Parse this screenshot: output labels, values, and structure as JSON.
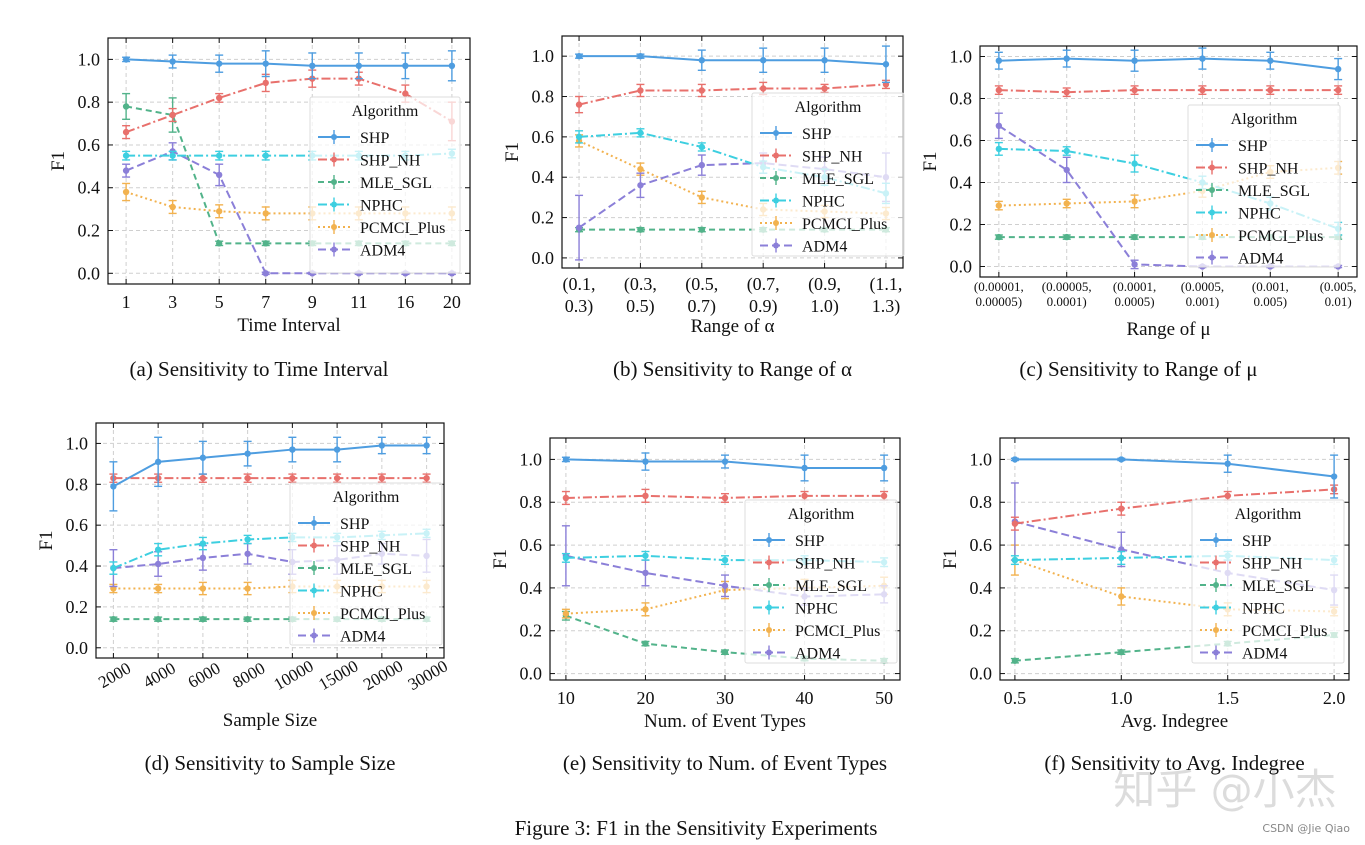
{
  "figure_caption": "Figure 3: F1 in the Sensitivity Experiments",
  "watermarks": {
    "zhihu": "知乎 @小杰",
    "csdn": "CSDN @Jie Qiao"
  },
  "series_styles": [
    {
      "name": "SHP",
      "color": "#4e9de0",
      "dash": ""
    },
    {
      "name": "SHP_NH",
      "color": "#e8706c",
      "dash": "9,3,2,3"
    },
    {
      "name": "MLE_SGL",
      "color": "#52b38a",
      "dash": "6,4"
    },
    {
      "name": "NPHC",
      "color": "#3dcfe0",
      "dash": "9,3,2,3"
    },
    {
      "name": "PCMCI_Plus",
      "color": "#f2b24f",
      "dash": "2,3"
    },
    {
      "name": "ADM4",
      "color": "#8b7fd8",
      "dash": "8,4"
    }
  ],
  "chart_data": [
    {
      "type": "line",
      "caption": "(a) Sensitivity to Time Interval",
      "xlabel": "Time Interval",
      "ylabel": "F1",
      "categories": [
        "1",
        "3",
        "5",
        "7",
        "9",
        "11",
        "16",
        "20"
      ],
      "ylim": [
        -0.05,
        1.1
      ],
      "yticks": [
        0.0,
        0.2,
        0.4,
        0.6,
        0.8,
        1.0
      ],
      "legend_title": "Algorithm",
      "series": [
        {
          "name": "SHP",
          "values": [
            1.0,
            0.99,
            0.98,
            0.98,
            0.97,
            0.97,
            0.97,
            0.97
          ],
          "err": [
            0.01,
            0.03,
            0.04,
            0.06,
            0.06,
            0.06,
            0.06,
            0.07
          ]
        },
        {
          "name": "SHP_NH",
          "values": [
            0.66,
            0.74,
            0.82,
            0.89,
            0.91,
            0.91,
            0.84,
            0.71
          ],
          "err": [
            0.03,
            0.03,
            0.02,
            0.04,
            0.04,
            0.03,
            0.04,
            0.09
          ]
        },
        {
          "name": "MLE_SGL",
          "values": [
            0.78,
            0.74,
            0.14,
            0.14,
            0.14,
            0.14,
            0.14,
            0.14
          ],
          "err": [
            0.06,
            0.08,
            0.01,
            0.01,
            0.01,
            0.01,
            0.01,
            0.01
          ]
        },
        {
          "name": "NPHC",
          "values": [
            0.55,
            0.55,
            0.55,
            0.55,
            0.55,
            0.55,
            0.55,
            0.56
          ],
          "err": [
            0.02,
            0.02,
            0.02,
            0.02,
            0.02,
            0.02,
            0.02,
            0.02
          ]
        },
        {
          "name": "PCMCI_Plus",
          "values": [
            0.38,
            0.31,
            0.29,
            0.28,
            0.28,
            0.28,
            0.28,
            0.28
          ],
          "err": [
            0.04,
            0.03,
            0.03,
            0.03,
            0.03,
            0.03,
            0.03,
            0.03
          ]
        },
        {
          "name": "ADM4",
          "values": [
            0.48,
            0.57,
            0.46,
            0.0,
            0.0,
            0.0,
            0.0,
            0.0
          ],
          "err": [
            0.03,
            0.04,
            0.05,
            0.005,
            0.005,
            0.005,
            0.005,
            0.005
          ]
        }
      ]
    },
    {
      "type": "line",
      "caption": "(b) Sensitivity to Range of α",
      "xlabel": "Range of α",
      "ylabel": "F1",
      "categories": [
        "(0.1,\n0.3)",
        "(0.3,\n0.5)",
        "(0.5,\n0.7)",
        "(0.7,\n0.9)",
        "(0.9,\n1.0)",
        "(1.1,\n1.3)"
      ],
      "ylim": [
        -0.05,
        1.1
      ],
      "yticks": [
        0.0,
        0.2,
        0.4,
        0.6,
        0.8,
        1.0
      ],
      "legend_title": "Algorithm",
      "series": [
        {
          "name": "SHP",
          "values": [
            1.0,
            1.0,
            0.98,
            0.98,
            0.98,
            0.96
          ],
          "err": [
            0.01,
            0.01,
            0.05,
            0.06,
            0.06,
            0.09
          ]
        },
        {
          "name": "SHP_NH",
          "values": [
            0.76,
            0.83,
            0.83,
            0.84,
            0.84,
            0.86
          ],
          "err": [
            0.04,
            0.03,
            0.03,
            0.03,
            0.02,
            0.02
          ]
        },
        {
          "name": "MLE_SGL",
          "values": [
            0.14,
            0.14,
            0.14,
            0.14,
            0.14,
            0.14
          ],
          "err": [
            0.01,
            0.01,
            0.01,
            0.01,
            0.01,
            0.01
          ]
        },
        {
          "name": "NPHC",
          "values": [
            0.6,
            0.62,
            0.55,
            0.45,
            0.4,
            0.32
          ],
          "err": [
            0.03,
            0.02,
            0.02,
            0.03,
            0.04,
            0.05
          ]
        },
        {
          "name": "PCMCI_Plus",
          "values": [
            0.58,
            0.44,
            0.3,
            0.24,
            0.23,
            0.22
          ],
          "err": [
            0.03,
            0.03,
            0.03,
            0.03,
            0.03,
            0.03
          ]
        },
        {
          "name": "ADM4",
          "values": [
            0.15,
            0.36,
            0.46,
            0.47,
            0.44,
            0.4
          ],
          "err": [
            0.16,
            0.06,
            0.05,
            0.05,
            0.06,
            0.12
          ]
        }
      ]
    },
    {
      "type": "line",
      "caption": "(c) Sensitivity to Range of μ",
      "xlabel": "Range of μ",
      "ylabel": "F1",
      "categories": [
        "(0.00001,\n0.00005)",
        "(0.00005,\n0.0001)",
        "(0.0001,\n0.0005)",
        "(0.0005,\n0.001)",
        "(0.001,\n0.005)",
        "(0.005,\n0.01)"
      ],
      "ylim": [
        -0.05,
        1.05
      ],
      "yticks": [
        0.0,
        0.2,
        0.4,
        0.6,
        0.8,
        1.0
      ],
      "legend_title": "Algorithm",
      "series": [
        {
          "name": "SHP",
          "values": [
            0.98,
            0.99,
            0.98,
            0.99,
            0.98,
            0.94
          ],
          "err": [
            0.04,
            0.04,
            0.05,
            0.05,
            0.04,
            0.05
          ]
        },
        {
          "name": "SHP_NH",
          "values": [
            0.84,
            0.83,
            0.84,
            0.84,
            0.84,
            0.84
          ],
          "err": [
            0.02,
            0.02,
            0.02,
            0.02,
            0.02,
            0.02
          ]
        },
        {
          "name": "MLE_SGL",
          "values": [
            0.14,
            0.14,
            0.14,
            0.14,
            0.14,
            0.14
          ],
          "err": [
            0.01,
            0.01,
            0.01,
            0.01,
            0.01,
            0.01
          ]
        },
        {
          "name": "NPHC",
          "values": [
            0.56,
            0.55,
            0.49,
            0.4,
            0.3,
            0.18
          ],
          "err": [
            0.03,
            0.02,
            0.04,
            0.03,
            0.03,
            0.03
          ]
        },
        {
          "name": "PCMCI_Plus",
          "values": [
            0.29,
            0.3,
            0.31,
            0.36,
            0.45,
            0.47
          ],
          "err": [
            0.02,
            0.02,
            0.03,
            0.03,
            0.03,
            0.03
          ]
        },
        {
          "name": "ADM4",
          "values": [
            0.67,
            0.46,
            0.01,
            0.0,
            0.0,
            0.0
          ],
          "err": [
            0.06,
            0.06,
            0.02,
            0.005,
            0.005,
            0.005
          ]
        }
      ]
    },
    {
      "type": "line",
      "caption": "(d) Sensitivity to Sample Size",
      "xlabel": "Sample Size",
      "ylabel": "F1",
      "categories": [
        "2000",
        "4000",
        "6000",
        "8000",
        "10000",
        "15000",
        "20000",
        "30000"
      ],
      "ylim": [
        -0.05,
        1.1
      ],
      "yticks": [
        0.0,
        0.2,
        0.4,
        0.6,
        0.8,
        1.0
      ],
      "legend_title": "Algorithm",
      "series": [
        {
          "name": "SHP",
          "values": [
            0.79,
            0.91,
            0.93,
            0.95,
            0.97,
            0.97,
            0.99,
            0.99
          ],
          "err": [
            0.12,
            0.12,
            0.08,
            0.06,
            0.06,
            0.06,
            0.04,
            0.04
          ]
        },
        {
          "name": "SHP_NH",
          "values": [
            0.83,
            0.83,
            0.83,
            0.83,
            0.83,
            0.83,
            0.83,
            0.83
          ],
          "err": [
            0.02,
            0.02,
            0.02,
            0.02,
            0.02,
            0.02,
            0.02,
            0.02
          ]
        },
        {
          "name": "MLE_SGL",
          "values": [
            0.14,
            0.14,
            0.14,
            0.14,
            0.14,
            0.14,
            0.14,
            0.14
          ],
          "err": [
            0.01,
            0.01,
            0.01,
            0.01,
            0.01,
            0.01,
            0.01,
            0.01
          ]
        },
        {
          "name": "NPHC",
          "values": [
            0.39,
            0.48,
            0.51,
            0.53,
            0.54,
            0.54,
            0.55,
            0.56
          ],
          "err": [
            0.03,
            0.03,
            0.03,
            0.02,
            0.02,
            0.02,
            0.02,
            0.02
          ]
        },
        {
          "name": "PCMCI_Plus",
          "values": [
            0.29,
            0.29,
            0.29,
            0.29,
            0.3,
            0.3,
            0.3,
            0.3
          ],
          "err": [
            0.02,
            0.02,
            0.03,
            0.03,
            0.03,
            0.03,
            0.03,
            0.03
          ]
        },
        {
          "name": "ADM4",
          "values": [
            0.39,
            0.41,
            0.44,
            0.46,
            0.42,
            0.43,
            0.46,
            0.45
          ],
          "err": [
            0.09,
            0.06,
            0.06,
            0.05,
            0.06,
            0.07,
            0.05,
            0.08
          ]
        }
      ]
    },
    {
      "type": "line",
      "caption": "(e) Sensitivity to Num. of Event Types",
      "xlabel": "Num. of Event Types",
      "ylabel": "F1",
      "x": [
        10,
        20,
        30,
        40,
        50
      ],
      "xlim": [
        8,
        52
      ],
      "xticks": [
        10,
        20,
        30,
        40,
        50
      ],
      "ylim": [
        -0.03,
        1.1
      ],
      "yticks": [
        0.0,
        0.2,
        0.4,
        0.6,
        0.8,
        1.0
      ],
      "legend_title": "Algorithm",
      "series": [
        {
          "name": "SHP",
          "values": [
            1.0,
            0.99,
            0.99,
            0.96,
            0.96
          ],
          "err": [
            0.01,
            0.04,
            0.03,
            0.06,
            0.06
          ]
        },
        {
          "name": "SHP_NH",
          "values": [
            0.82,
            0.83,
            0.82,
            0.83,
            0.83
          ],
          "err": [
            0.03,
            0.03,
            0.02,
            0.02,
            0.02
          ]
        },
        {
          "name": "MLE_SGL",
          "values": [
            0.27,
            0.14,
            0.1,
            0.07,
            0.06
          ],
          "err": [
            0.02,
            0.01,
            0.01,
            0.01,
            0.01
          ]
        },
        {
          "name": "NPHC",
          "values": [
            0.54,
            0.55,
            0.53,
            0.53,
            0.52
          ],
          "err": [
            0.02,
            0.02,
            0.02,
            0.02,
            0.02
          ]
        },
        {
          "name": "PCMCI_Plus",
          "values": [
            0.28,
            0.3,
            0.39,
            0.4,
            0.41
          ],
          "err": [
            0.02,
            0.03,
            0.04,
            0.04,
            0.04
          ]
        },
        {
          "name": "ADM4",
          "values": [
            0.55,
            0.47,
            0.41,
            0.36,
            0.37
          ],
          "err": [
            0.14,
            0.06,
            0.05,
            0.04,
            0.04
          ]
        }
      ]
    },
    {
      "type": "line",
      "caption": "(f) Sensitivity to Avg. Indegree",
      "xlabel": "Avg. Indegree",
      "ylabel": "F1",
      "x": [
        0.5,
        1.0,
        1.5,
        2.0
      ],
      "xlim": [
        0.43,
        2.07
      ],
      "xticks": [
        0.5,
        1.0,
        1.5,
        2.0
      ],
      "ylim": [
        -0.03,
        1.1
      ],
      "yticks": [
        0.0,
        0.2,
        0.4,
        0.6,
        0.8,
        1.0
      ],
      "legend_title": "Algorithm",
      "series": [
        {
          "name": "SHP",
          "values": [
            1.0,
            1.0,
            0.98,
            0.92
          ],
          "err": [
            0.005,
            0.005,
            0.04,
            0.1
          ]
        },
        {
          "name": "SHP_NH",
          "values": [
            0.7,
            0.77,
            0.83,
            0.86
          ],
          "err": [
            0.03,
            0.03,
            0.02,
            0.02
          ]
        },
        {
          "name": "MLE_SGL",
          "values": [
            0.06,
            0.1,
            0.14,
            0.18
          ],
          "err": [
            0.01,
            0.01,
            0.01,
            0.01
          ]
        },
        {
          "name": "NPHC",
          "values": [
            0.53,
            0.54,
            0.55,
            0.53
          ],
          "err": [
            0.02,
            0.03,
            0.02,
            0.02
          ]
        },
        {
          "name": "PCMCI_Plus",
          "values": [
            0.53,
            0.36,
            0.3,
            0.29
          ],
          "err": [
            0.07,
            0.04,
            0.03,
            0.02
          ]
        },
        {
          "name": "ADM4",
          "values": [
            0.71,
            0.58,
            0.47,
            0.39
          ],
          "err": [
            0.18,
            0.08,
            0.06,
            0.07
          ]
        }
      ]
    }
  ]
}
